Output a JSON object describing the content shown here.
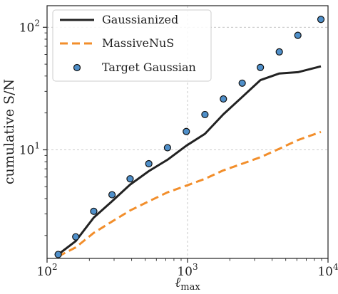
{
  "chart_data": {
    "type": "line",
    "title": "",
    "xlabel": "ℓ",
    "xlabel_sub": "max",
    "ylabel": "cumulative S/N",
    "xscale": "log",
    "yscale": "log",
    "xlim": [
      100,
      10000
    ],
    "ylim": [
      1.3,
      150
    ],
    "grid": true,
    "legend_position": "top-left",
    "x_ticks": [
      {
        "value": 100,
        "base": "10",
        "exp": "2"
      },
      {
        "value": 1000,
        "base": "10",
        "exp": "3"
      },
      {
        "value": 10000,
        "base": "10",
        "exp": "4"
      }
    ],
    "y_ticks": [
      {
        "value": 10,
        "base": "10",
        "exp": "1"
      },
      {
        "value": 100,
        "base": "10",
        "exp": "2"
      }
    ],
    "series": [
      {
        "name": "Gaussianized",
        "style": "solid",
        "color": "#222222",
        "x": [
          120,
          160,
          215,
          290,
          390,
          530,
          720,
          980,
          1330,
          1800,
          2450,
          3300,
          4500,
          6100,
          8900
        ],
        "y": [
          1.4,
          1.8,
          2.8,
          3.8,
          5.2,
          6.7,
          8.3,
          10.8,
          13.5,
          19.5,
          27.0,
          37.0,
          42.0,
          43.0,
          48.0
        ]
      },
      {
        "name": "MassiveNuS",
        "style": "dashed",
        "color": "#f28e2b",
        "x": [
          120,
          160,
          215,
          290,
          390,
          530,
          720,
          980,
          1330,
          1800,
          2450,
          3300,
          4500,
          6100,
          8900
        ],
        "y": [
          1.35,
          1.6,
          2.1,
          2.6,
          3.2,
          3.8,
          4.5,
          5.1,
          5.8,
          6.8,
          7.7,
          8.7,
          10.2,
          12.0,
          14.0
        ]
      },
      {
        "name": "Target Gaussian",
        "style": "markers",
        "color": "#4f8fc9",
        "x": [
          120,
          160,
          215,
          290,
          390,
          530,
          720,
          980,
          1330,
          1800,
          2450,
          3300,
          4500,
          6100,
          8900
        ],
        "y": [
          1.4,
          1.95,
          3.15,
          4.3,
          5.8,
          7.7,
          10.4,
          14.1,
          19.4,
          26.0,
          35.0,
          47.0,
          63.0,
          86.0,
          116.0
        ]
      }
    ],
    "colors": {
      "axis": "#222222",
      "grid": "#bbbbbb",
      "marker_edge": "#111111"
    }
  }
}
